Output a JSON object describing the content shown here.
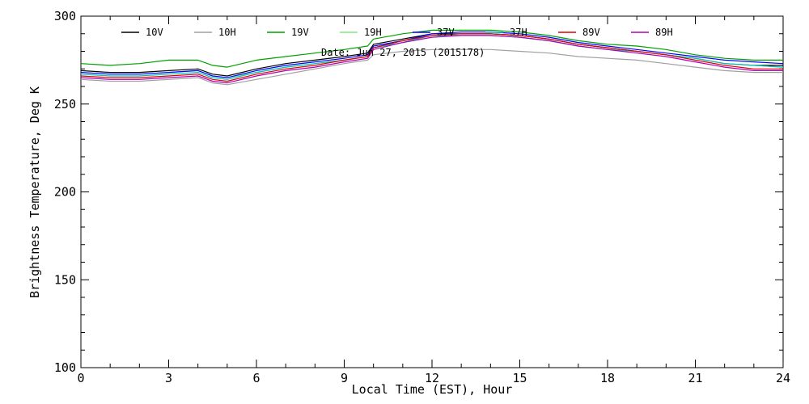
{
  "chart_data": {
    "type": "line",
    "title": "",
    "annotation": "Date: Jun 27, 2015 (2015178)",
    "xlabel": "Local Time (EST), Hour",
    "ylabel": "Brightness Temperature, Deg K",
    "xlim": [
      0,
      24
    ],
    "ylim": [
      100,
      300
    ],
    "xticks": [
      0,
      3,
      6,
      9,
      12,
      15,
      18,
      21,
      24
    ],
    "yticks": [
      100,
      150,
      200,
      250,
      300
    ],
    "grid": false,
    "legend_position": "top",
    "x": [
      0,
      1,
      2,
      3,
      4,
      4.5,
      5,
      6,
      7,
      8,
      9,
      9.8,
      10,
      11,
      12,
      13,
      14,
      15,
      16,
      17,
      18,
      19,
      20,
      21,
      22,
      23,
      24
    ],
    "series": [
      {
        "name": "10V",
        "color": "#000000",
        "values": [
          269,
          268,
          268,
          269,
          270,
          267,
          266,
          270,
          273,
          275,
          277,
          279,
          284,
          287,
          290,
          290,
          290,
          289,
          287,
          284,
          282,
          280,
          278,
          276,
          273,
          272,
          272
        ]
      },
      {
        "name": "10H",
        "color": "#a0a0a0",
        "values": [
          264,
          263,
          263,
          264,
          265,
          262,
          261,
          264,
          267,
          270,
          273,
          275,
          278,
          280,
          281,
          281,
          281,
          280,
          279,
          277,
          276,
          275,
          273,
          271,
          269,
          268,
          268
        ]
      },
      {
        "name": "19V",
        "color": "#00a000",
        "values": [
          273,
          272,
          273,
          275,
          275,
          272,
          271,
          275,
          277,
          279,
          281,
          283,
          287,
          290,
          292,
          292,
          292,
          291,
          289,
          286,
          284,
          283,
          281,
          278,
          276,
          275,
          275
        ]
      },
      {
        "name": "19H",
        "color": "#80e880",
        "values": [
          268,
          267,
          267,
          268,
          269,
          266,
          265,
          268,
          271,
          273,
          275,
          277,
          282,
          286,
          289,
          289,
          289,
          288,
          286,
          283,
          281,
          280,
          278,
          276,
          273,
          272,
          271
        ]
      },
      {
        "name": "37V",
        "color": "#0000ff",
        "values": [
          268,
          267,
          267,
          268,
          269,
          266,
          265,
          269,
          272,
          274,
          276,
          278,
          283,
          286,
          290,
          291,
          291,
          290,
          288,
          285,
          283,
          281,
          279,
          277,
          275,
          274,
          273
        ]
      },
      {
        "name": "37H",
        "color": "#00c0c0",
        "values": [
          267,
          266,
          266,
          267,
          268,
          265,
          264,
          268,
          271,
          273,
          275,
          277,
          282,
          285,
          289,
          289,
          289,
          288,
          286,
          283,
          281,
          280,
          278,
          276,
          273,
          272,
          271
        ]
      },
      {
        "name": "89V",
        "color": "#e00000",
        "values": [
          266,
          265,
          265,
          266,
          267,
          264,
          263,
          267,
          270,
          272,
          275,
          277,
          282,
          286,
          289,
          290,
          290,
          289,
          287,
          284,
          282,
          280,
          278,
          275,
          272,
          270,
          270
        ]
      },
      {
        "name": "89H",
        "color": "#b000b0",
        "values": [
          265,
          264,
          264,
          265,
          266,
          263,
          262,
          266,
          269,
          271,
          274,
          276,
          281,
          285,
          288,
          289,
          289,
          288,
          286,
          283,
          281,
          279,
          277,
          274,
          271,
          269,
          269
        ]
      }
    ]
  }
}
